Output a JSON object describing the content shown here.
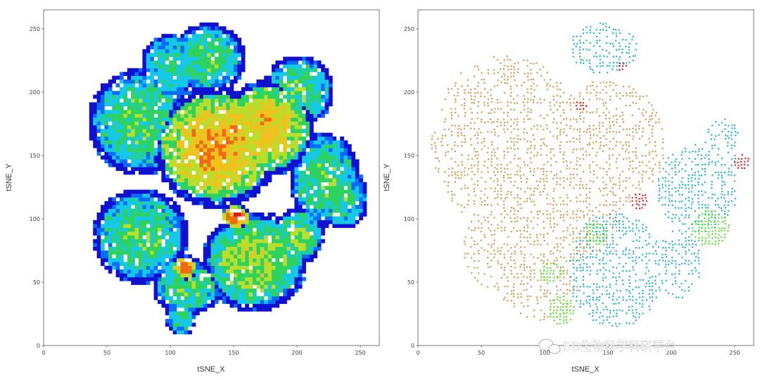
{
  "watermark": "BD生物科学科研平台",
  "chart_data": [
    {
      "type": "scatter",
      "subtype": "density-heatmap",
      "xlabel": "tSNE_X",
      "ylabel": "tSNE_Y",
      "xlim": [
        0,
        265
      ],
      "ylim": [
        0,
        265
      ],
      "x_ticks": [
        "0",
        "50",
        "100",
        "150",
        "200",
        "250"
      ],
      "y_ticks": [
        "0",
        "50",
        "100",
        "150",
        "200",
        "250"
      ],
      "color_scale": [
        "#1010d0",
        "#0a6cff",
        "#14c8e6",
        "#2ed35f",
        "#b9de2b",
        "#f0c21e",
        "#f06a14",
        "#d71d1d"
      ],
      "regions": [
        {
          "cx": 75,
          "cy": 175,
          "rx": 42,
          "ry": 42,
          "density": 0.45
        },
        {
          "cx": 135,
          "cy": 155,
          "rx": 50,
          "ry": 48,
          "density": 0.75
        },
        {
          "cx": 175,
          "cy": 170,
          "rx": 38,
          "ry": 38,
          "density": 0.7
        },
        {
          "cx": 200,
          "cy": 200,
          "rx": 28,
          "ry": 28,
          "density": 0.45
        },
        {
          "cx": 128,
          "cy": 225,
          "rx": 30,
          "ry": 28,
          "density": 0.45
        },
        {
          "cx": 100,
          "cy": 220,
          "rx": 25,
          "ry": 25,
          "density": 0.4
        },
        {
          "cx": 75,
          "cy": 85,
          "rx": 38,
          "ry": 38,
          "density": 0.45
        },
        {
          "cx": 165,
          "cy": 65,
          "rx": 42,
          "ry": 40,
          "density": 0.55
        },
        {
          "cx": 220,
          "cy": 130,
          "rx": 28,
          "ry": 38,
          "density": 0.45
        },
        {
          "cx": 235,
          "cy": 115,
          "rx": 20,
          "ry": 25,
          "density": 0.4
        },
        {
          "cx": 112,
          "cy": 45,
          "rx": 28,
          "ry": 22,
          "density": 0.45
        },
        {
          "cx": 107,
          "cy": 20,
          "rx": 12,
          "ry": 14,
          "density": 0.4
        },
        {
          "cx": 200,
          "cy": 85,
          "rx": 20,
          "ry": 22,
          "density": 0.5
        },
        {
          "cx": 110,
          "cy": 60,
          "rx": 10,
          "ry": 10,
          "density": 0.85
        },
        {
          "cx": 150,
          "cy": 100,
          "rx": 12,
          "ry": 10,
          "density": 0.9
        }
      ]
    },
    {
      "type": "scatter",
      "subtype": "population-overlay",
      "xlabel": "tSNE_X",
      "ylabel": "tSNE_Y",
      "xlim": [
        0,
        265
      ],
      "ylim": [
        0,
        265
      ],
      "x_ticks": [
        "0",
        "50",
        "100",
        "150",
        "200",
        "250"
      ],
      "y_ticks": [
        "0",
        "50",
        "100",
        "150",
        "200",
        "250"
      ],
      "series": [
        {
          "color": "#d59b58",
          "density": 0.42,
          "regions": [
            {
              "cx": 70,
              "cy": 160,
              "rx": 60,
              "ry": 70
            },
            {
              "cx": 150,
              "cy": 160,
              "rx": 45,
              "ry": 50
            },
            {
              "cx": 120,
              "cy": 110,
              "rx": 40,
              "ry": 45
            },
            {
              "cx": 70,
              "cy": 80,
              "rx": 35,
              "ry": 40
            },
            {
              "cx": 95,
              "cy": 45,
              "rx": 30,
              "ry": 25
            }
          ]
        },
        {
          "color": "#2bb3d4",
          "density": 0.5,
          "regions": [
            {
              "cx": 155,
              "cy": 60,
              "rx": 38,
              "ry": 45
            },
            {
              "cx": 205,
              "cy": 65,
              "rx": 18,
              "ry": 28
            },
            {
              "cx": 145,
              "cy": 235,
              "rx": 28,
              "ry": 20
            },
            {
              "cx": 220,
              "cy": 125,
              "rx": 32,
              "ry": 35
            },
            {
              "cx": 240,
              "cy": 160,
              "rx": 14,
              "ry": 20
            }
          ]
        },
        {
          "color": "#5fe23a",
          "density": 0.9,
          "regions": [
            {
              "cx": 113,
              "cy": 28,
              "rx": 10,
              "ry": 12
            },
            {
              "cx": 105,
              "cy": 58,
              "rx": 10,
              "ry": 8
            },
            {
              "cx": 140,
              "cy": 88,
              "rx": 9,
              "ry": 10
            },
            {
              "cx": 230,
              "cy": 93,
              "rx": 15,
              "ry": 15
            }
          ]
        },
        {
          "color": "#e02c2c",
          "density": 0.95,
          "regions": [
            {
              "cx": 175,
              "cy": 115,
              "rx": 7,
              "ry": 7
            },
            {
              "cx": 128,
              "cy": 190,
              "rx": 5,
              "ry": 5
            },
            {
              "cx": 160,
              "cy": 220,
              "rx": 4,
              "ry": 4
            },
            {
              "cx": 255,
              "cy": 145,
              "rx": 6,
              "ry": 6
            }
          ]
        }
      ]
    }
  ]
}
